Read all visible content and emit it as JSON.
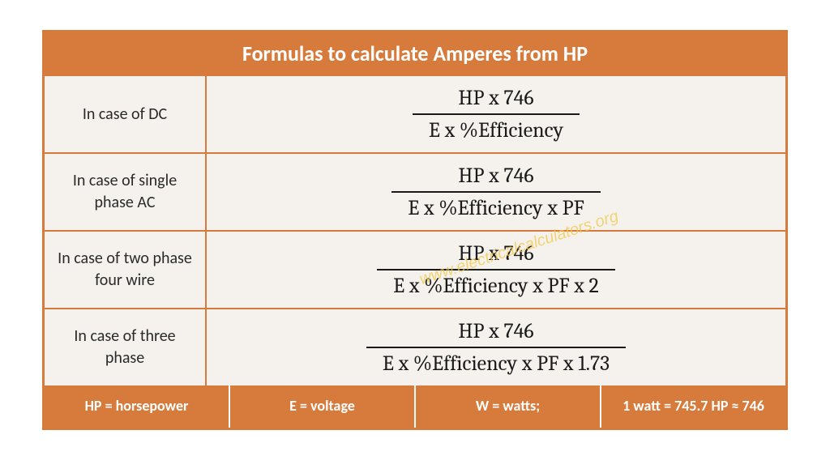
{
  "title": "Formulas to calculate Amperes from HP",
  "rows": [
    {
      "label": "In case of DC",
      "numerator": "HP x 746",
      "denominator": "E x %Efficiency"
    },
    {
      "label": "In case of single phase AC",
      "numerator": "HP x 746",
      "denominator": "E x %Efficiency x PF"
    },
    {
      "label": "In case of two phase four wire",
      "numerator": "HP x 746",
      "denominator": "E x %Efficiency x PF x 2"
    },
    {
      "label": "In case of three phase",
      "numerator": "HP x 746",
      "denominator": "E x %Efficiency x PF x 1.73"
    }
  ],
  "legend": [
    "HP = horsepower",
    "E = voltage",
    "W = watts;",
    "1 watt = 745.7  HP ≈ 746"
  ],
  "watermark": "www.electricalcalculators.org",
  "colors": {
    "accent": "#d77b3c",
    "row_bg": "#f5f2ee",
    "text": "#1a1a1a",
    "watermark": "#f2c94c"
  }
}
